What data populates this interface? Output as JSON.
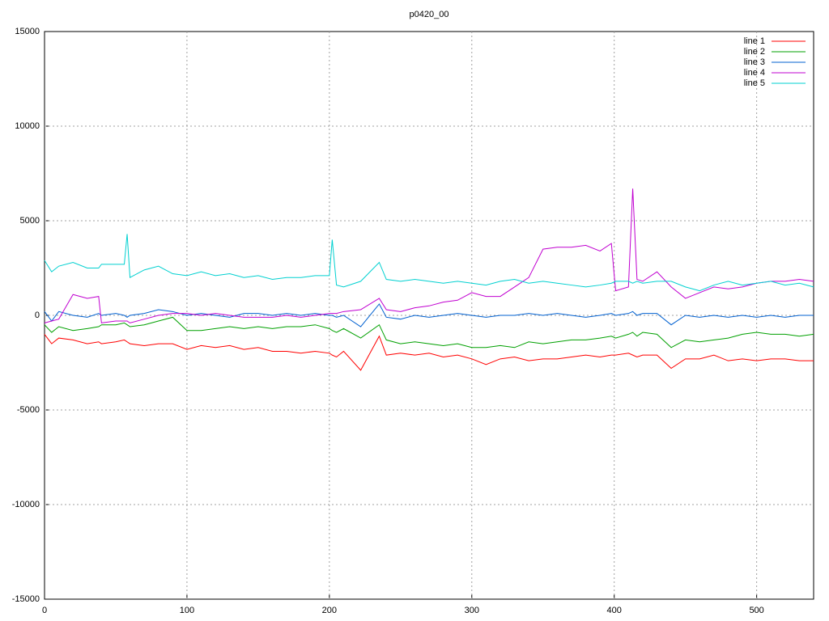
{
  "chart_data": {
    "type": "line",
    "title": "p0420_00",
    "x": [
      0,
      5,
      10,
      20,
      30,
      38,
      40,
      50,
      56,
      58,
      60,
      70,
      80,
      90,
      100,
      110,
      120,
      130,
      140,
      150,
      160,
      170,
      180,
      190,
      200,
      202,
      205,
      210,
      222,
      235,
      240,
      250,
      260,
      270,
      280,
      290,
      300,
      310,
      320,
      330,
      340,
      350,
      360,
      370,
      380,
      390,
      398,
      401,
      410,
      413,
      416,
      420,
      430,
      440,
      450,
      460,
      470,
      480,
      490,
      500,
      510,
      520,
      530,
      540
    ],
    "series": [
      {
        "name": "line 1",
        "color": "#ff0000",
        "values": [
          -1000,
          -1500,
          -1200,
          -1300,
          -1500,
          -1400,
          -1500,
          -1400,
          -1300,
          -1400,
          -1500,
          -1600,
          -1500,
          -1500,
          -1800,
          -1600,
          -1700,
          -1600,
          -1800,
          -1700,
          -1900,
          -1900,
          -2000,
          -1900,
          -2000,
          -2100,
          -2200,
          -1900,
          -2900,
          -1100,
          -2100,
          -2000,
          -2100,
          -2000,
          -2200,
          -2100,
          -2300,
          -2600,
          -2300,
          -2200,
          -2400,
          -2300,
          -2300,
          -2200,
          -2100,
          -2200,
          -2100,
          -2100,
          -2000,
          -2100,
          -2200,
          -2100,
          -2100,
          -2800,
          -2300,
          -2300,
          -2100,
          -2400,
          -2300,
          -2400,
          -2300,
          -2300,
          -2400,
          -2400
        ]
      },
      {
        "name": "line 2",
        "color": "#00a000",
        "values": [
          -500,
          -900,
          -600,
          -800,
          -700,
          -600,
          -500,
          -500,
          -400,
          -500,
          -600,
          -500,
          -300,
          -100,
          -800,
          -800,
          -700,
          -600,
          -700,
          -600,
          -700,
          -600,
          -600,
          -500,
          -700,
          -800,
          -900,
          -700,
          -1200,
          -500,
          -1300,
          -1500,
          -1400,
          -1500,
          -1600,
          -1500,
          -1700,
          -1700,
          -1600,
          -1700,
          -1400,
          -1500,
          -1400,
          -1300,
          -1300,
          -1200,
          -1100,
          -1200,
          -1000,
          -900,
          -1100,
          -900,
          -1000,
          -1700,
          -1300,
          -1400,
          -1300,
          -1200,
          -1000,
          -900,
          -1000,
          -1000,
          -1100,
          -1000
        ]
      },
      {
        "name": "line 3",
        "color": "#0060d0",
        "values": [
          200,
          -300,
          200,
          0,
          -100,
          100,
          0,
          100,
          0,
          -100,
          0,
          100,
          300,
          200,
          0,
          100,
          0,
          -100,
          100,
          100,
          0,
          100,
          0,
          100,
          0,
          0,
          -100,
          0,
          -600,
          600,
          -100,
          -200,
          0,
          -100,
          0,
          100,
          0,
          -100,
          0,
          0,
          100,
          0,
          100,
          0,
          -100,
          0,
          100,
          0,
          100,
          200,
          0,
          100,
          100,
          -500,
          0,
          -100,
          0,
          -100,
          0,
          -100,
          0,
          -100,
          0,
          0
        ]
      },
      {
        "name": "line 4",
        "color": "#c000d0",
        "values": [
          -400,
          -300,
          -200,
          1100,
          900,
          1000,
          -400,
          -300,
          -300,
          -300,
          -400,
          -200,
          0,
          100,
          100,
          0,
          100,
          0,
          -100,
          -100,
          -100,
          0,
          -100,
          0,
          100,
          100,
          100,
          200,
          300,
          900,
          300,
          200,
          400,
          500,
          700,
          800,
          1200,
          1000,
          1000,
          1500,
          2000,
          3500,
          3600,
          3600,
          3700,
          3400,
          3800,
          1300,
          1500,
          6700,
          1900,
          1800,
          2300,
          1500,
          900,
          1200,
          1500,
          1400,
          1500,
          1700,
          1800,
          1800,
          1900,
          1800
        ]
      },
      {
        "name": "line 5",
        "color": "#00d0d0",
        "values": [
          2900,
          2300,
          2600,
          2800,
          2500,
          2500,
          2700,
          2700,
          2700,
          4300,
          2000,
          2400,
          2600,
          2200,
          2100,
          2300,
          2100,
          2200,
          2000,
          2100,
          1900,
          2000,
          2000,
          2100,
          2100,
          4000,
          1600,
          1500,
          1800,
          2800,
          1900,
          1800,
          1900,
          1800,
          1700,
          1800,
          1700,
          1600,
          1800,
          1900,
          1700,
          1800,
          1700,
          1600,
          1500,
          1600,
          1700,
          1800,
          1800,
          1700,
          1800,
          1700,
          1800,
          1800,
          1500,
          1300,
          1600,
          1800,
          1600,
          1700,
          1800,
          1600,
          1700,
          1500
        ]
      }
    ],
    "xlim": [
      0,
      540
    ],
    "ylim": [
      -15000,
      15000
    ],
    "xticks": [
      0,
      100,
      200,
      300,
      400,
      500
    ],
    "yticks": [
      -15000,
      -10000,
      -5000,
      0,
      5000,
      10000,
      15000
    ],
    "grid": true,
    "legend": "top-right"
  }
}
